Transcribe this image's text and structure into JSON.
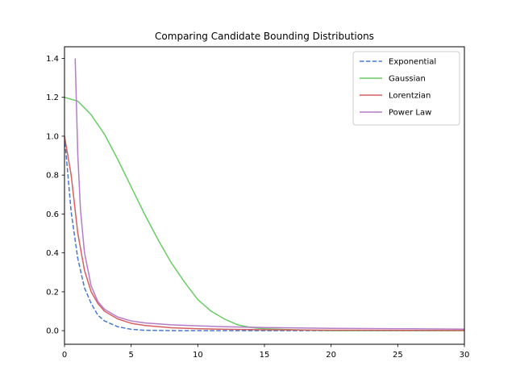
{
  "chart_data": {
    "type": "line",
    "title": "Comparing Candidate Bounding Distributions",
    "xlabel": "",
    "ylabel": "",
    "xlim": [
      0,
      30
    ],
    "ylim": [
      -0.07,
      1.46
    ],
    "xticks": [
      0,
      5,
      10,
      15,
      20,
      25,
      30
    ],
    "yticks": [
      0.0,
      0.2,
      0.4,
      0.6,
      0.8,
      1.0,
      1.2,
      1.4
    ],
    "xtick_labels": [
      "0",
      "5",
      "10",
      "15",
      "20",
      "25",
      "30"
    ],
    "ytick_labels": [
      "0.0",
      "0.2",
      "0.4",
      "0.6",
      "0.8",
      "1.0",
      "1.2",
      "1.4"
    ],
    "grid": false,
    "legend_position": "top-right",
    "series": [
      {
        "name": "Exponential",
        "color": "#4878cf",
        "style": "dashed",
        "x": [
          0,
          0.5,
          1,
          1.5,
          2,
          2.5,
          3,
          4,
          5,
          6,
          8,
          10,
          12,
          15,
          20,
          25,
          30
        ],
        "y": [
          1.0,
          0.61,
          0.37,
          0.22,
          0.14,
          0.08,
          0.05,
          0.02,
          0.007,
          0.002,
          0.0,
          0.0,
          0.0,
          0.0,
          0.0,
          0.0,
          0.0
        ]
      },
      {
        "name": "Gaussian",
        "color": "#6acc65",
        "style": "solid",
        "x": [
          0,
          1,
          2,
          3,
          4,
          5,
          6,
          7,
          8,
          9,
          10,
          11,
          12,
          13,
          14,
          15,
          17,
          20,
          25,
          30
        ],
        "y": [
          1.2,
          1.18,
          1.11,
          1.01,
          0.88,
          0.74,
          0.6,
          0.47,
          0.35,
          0.25,
          0.16,
          0.1,
          0.06,
          0.03,
          0.016,
          0.01,
          0.005,
          0.0,
          0.0,
          0.0
        ]
      },
      {
        "name": "Lorentzian",
        "color": "#d65f5f",
        "style": "solid",
        "x": [
          0,
          0.5,
          1,
          1.5,
          2,
          2.5,
          3,
          4,
          5,
          6,
          8,
          10,
          12,
          15,
          20,
          25,
          30
        ],
        "y": [
          1.0,
          0.8,
          0.5,
          0.31,
          0.2,
          0.14,
          0.1,
          0.06,
          0.038,
          0.027,
          0.015,
          0.01,
          0.007,
          0.0044,
          0.0025,
          0.0016,
          0.0011
        ]
      },
      {
        "name": "Power Law",
        "color": "#b47cc7",
        "style": "solid",
        "x": [
          0.8,
          1,
          1.2,
          1.5,
          2,
          2.5,
          3,
          4,
          5,
          6,
          8,
          10,
          12,
          15,
          20,
          25,
          30
        ],
        "y": [
          1.4,
          0.9,
          0.62,
          0.4,
          0.23,
          0.15,
          0.11,
          0.07,
          0.05,
          0.04,
          0.03,
          0.025,
          0.02,
          0.016,
          0.012,
          0.01,
          0.008
        ]
      }
    ]
  }
}
